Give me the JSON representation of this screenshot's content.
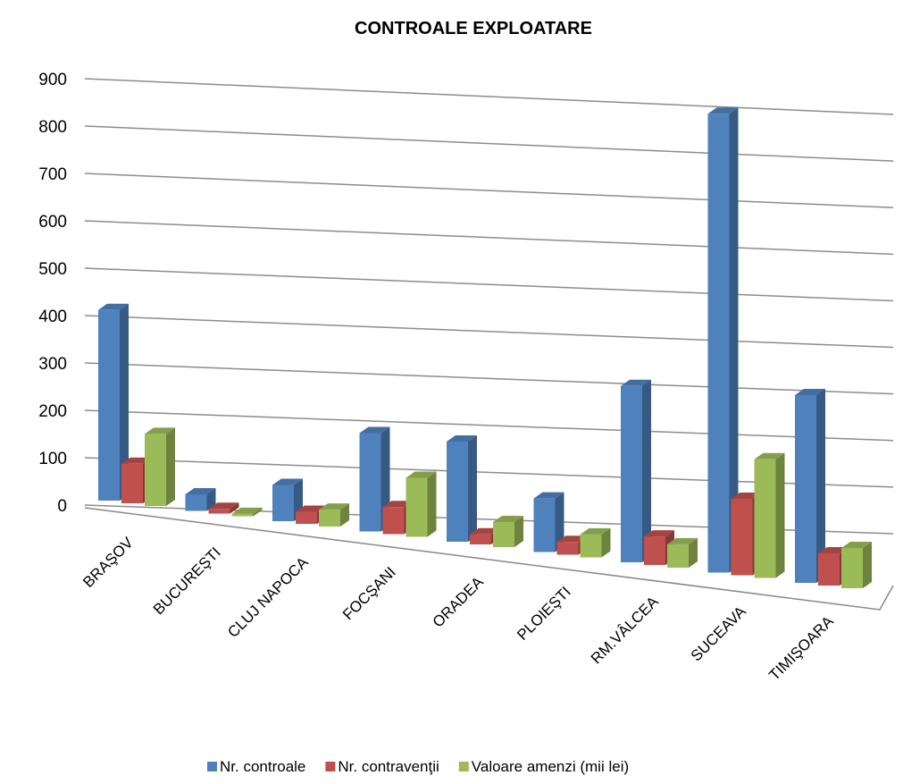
{
  "chart_data": {
    "type": "bar3d",
    "title": "CONTROALE EXPLOATARE",
    "categories": [
      "BRAŞOV",
      "BUCUREŞTI",
      "CLUJ NAPOCA",
      "FOCŞANI",
      "ORADEA",
      "PLOIEŞTI",
      "RM.VÂLCEA",
      "SUCEAVA",
      "TIMIŞOARA"
    ],
    "series": [
      {
        "name": "Nr. controale",
        "color": "#4f81bd",
        "values": [
          410,
          35,
          75,
          200,
          200,
          105,
          340,
          870,
          350
        ]
      },
      {
        "name": "Nr. contravenţii",
        "color": "#c0504d",
        "values": [
          85,
          10,
          25,
          55,
          20,
          25,
          55,
          145,
          60
        ]
      },
      {
        "name": "Valoare amenzi (mii lei)",
        "color": "#9bbb59",
        "values": [
          155,
          5,
          35,
          120,
          50,
          45,
          45,
          225,
          75
        ]
      }
    ],
    "ylim": [
      0,
      900
    ],
    "yticks": [
      0,
      100,
      200,
      300,
      400,
      500,
      600,
      700,
      800,
      900
    ],
    "grid": true,
    "legend": "bottom"
  }
}
